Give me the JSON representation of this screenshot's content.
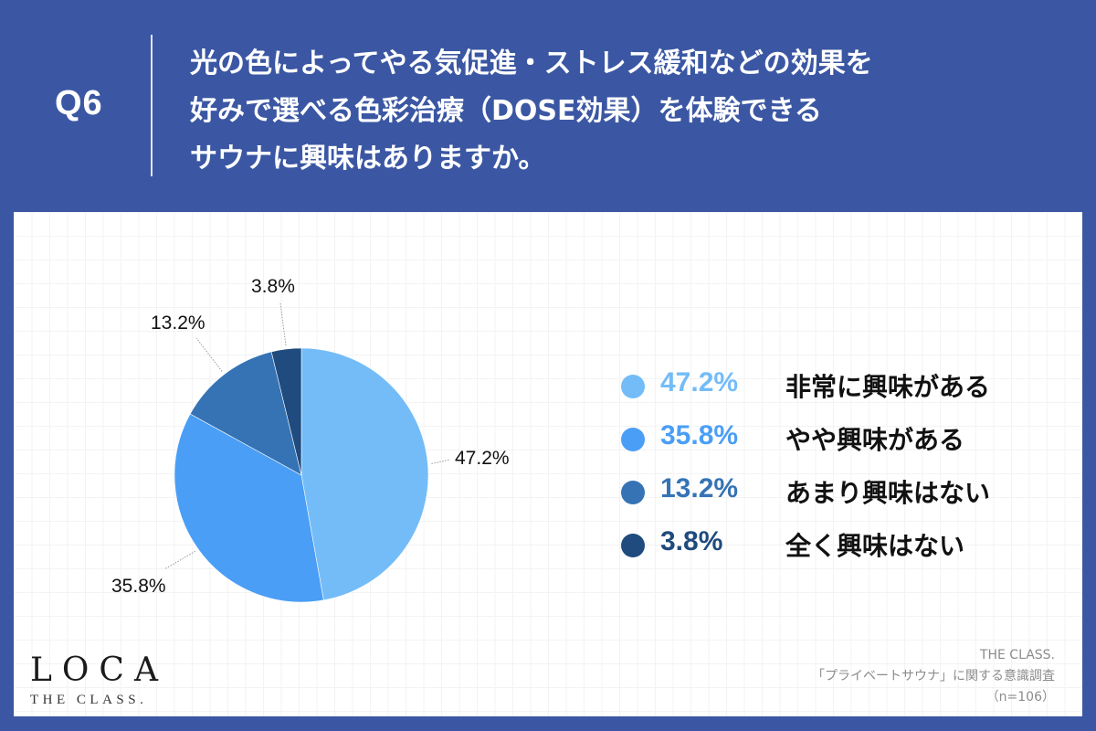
{
  "header": {
    "question_number": "Q6",
    "question_lines": [
      "光の色によってやる気促進・ストレス緩和などの効果を",
      "好みで選べる色彩治療（DOSE効果）を体験できる",
      "サウナに興味はありますか。"
    ]
  },
  "colors": {
    "header_background": "#3b57a3",
    "panel_background": "#ffffff",
    "slice_1": "#74bcf7",
    "slice_2": "#4a9ef5",
    "slice_3": "#3573b5",
    "slice_4": "#1f4b7e"
  },
  "chart_data": {
    "type": "pie",
    "title": "光の色によってやる気促進・ストレス緩和などの効果を好みで選べる色彩治療（DOSE効果）を体験できるサウナに興味はありますか。",
    "categories": [
      "非常に興味がある",
      "やや興味がある",
      "あまり興味はない",
      "全く興味はない"
    ],
    "values": [
      47.2,
      35.8,
      13.2,
      3.8
    ],
    "unit": "%",
    "start_angle": "12 o'clock, clockwise",
    "data_labels": [
      "47.2%",
      "35.8%",
      "13.2%",
      "3.8%"
    ],
    "legend_position": "right",
    "sample_size": "n=106"
  },
  "legend": [
    {
      "pct": "47.2%",
      "label": "非常に興味がある",
      "color": "#74bcf7"
    },
    {
      "pct": "35.8%",
      "label": "やや興味がある",
      "color": "#4a9ef5"
    },
    {
      "pct": "13.2%",
      "label": "あまり興味はない",
      "color": "#3573b5"
    },
    {
      "pct": "3.8%",
      "label": "全く興味はない",
      "color": "#1f4b7e"
    }
  ],
  "logo": {
    "main": "LOCA",
    "sub": "THE CLASS."
  },
  "source": {
    "line1": "THE CLASS.",
    "line2": "「プライベートサウナ」に関する意識調査",
    "line3": "（n=106）"
  }
}
